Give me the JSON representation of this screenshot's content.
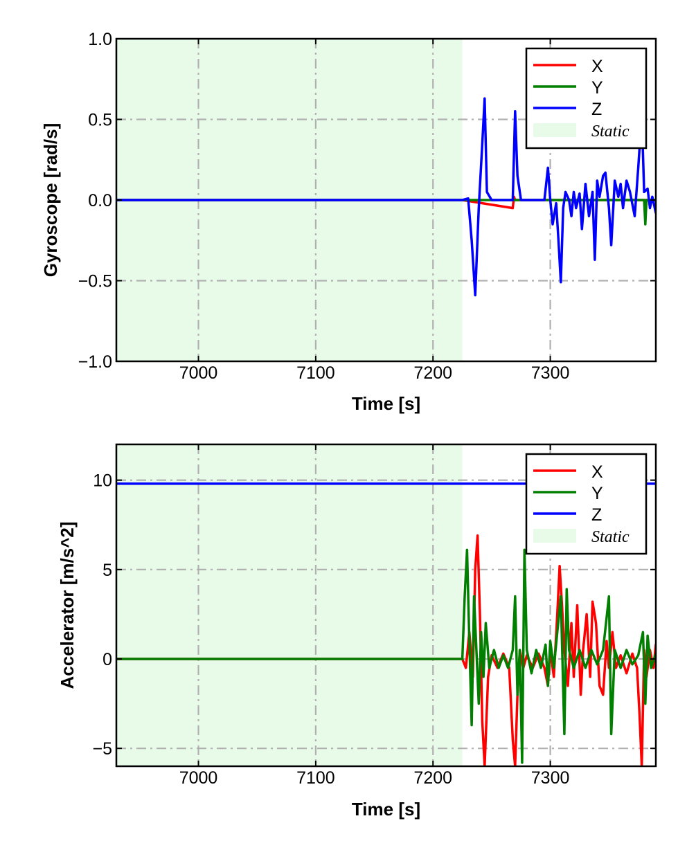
{
  "colors": {
    "x": "#ff0000",
    "y": "#007f00",
    "z": "#0000ff",
    "static": "#e8fbe8",
    "grid": "#b0b0b0"
  },
  "chart_data": [
    {
      "type": "line",
      "xlabel": "Time [s]",
      "ylabel": "Gyroscope [rad/s]",
      "xlim": [
        6930,
        7390
      ],
      "ylim": [
        -1.0,
        1.0
      ],
      "xticks": [
        7000,
        7100,
        7200,
        7300
      ],
      "xtick_labels": [
        "7000",
        "7100",
        "7200",
        "7300"
      ],
      "yticks": [
        1.0,
        0.5,
        0.0,
        -0.5,
        -1.0
      ],
      "ytick_labels": [
        "1.0",
        "0.5",
        "0.0",
        "−0.5",
        "−1.0"
      ],
      "grid": true,
      "legend_position": "top-right",
      "static_region": [
        6930,
        7225
      ],
      "legend": [
        "X",
        "Y",
        "Z",
        "Static"
      ],
      "series": [
        {
          "name": "X",
          "color": "#ff0000",
          "x": [
            6930,
            7225,
            7268,
            7269,
            7270,
            7300,
            7390
          ],
          "y": [
            0,
            0,
            -0.05,
            0.02,
            0,
            0,
            0
          ]
        },
        {
          "name": "Y",
          "color": "#007f00",
          "x": [
            6930,
            7225,
            7380,
            7381,
            7382,
            7390
          ],
          "y": [
            0,
            0,
            0,
            -0.15,
            0,
            0
          ]
        },
        {
          "name": "Z",
          "color": "#0000ff",
          "x": [
            6930,
            7225,
            7230,
            7233,
            7236,
            7239,
            7242,
            7244,
            7246,
            7250,
            7268,
            7270,
            7272,
            7275,
            7278,
            7295,
            7298,
            7300,
            7302,
            7305,
            7307,
            7309,
            7311,
            7313,
            7316,
            7318,
            7320,
            7322,
            7325,
            7327,
            7330,
            7333,
            7336,
            7338,
            7340,
            7342,
            7345,
            7347,
            7350,
            7352,
            7355,
            7358,
            7360,
            7362,
            7365,
            7368,
            7372,
            7375,
            7378,
            7380,
            7383,
            7385,
            7387,
            7390
          ],
          "y": [
            0,
            0,
            0.01,
            -0.25,
            -0.59,
            -0.05,
            0.35,
            0.63,
            0.05,
            0,
            0,
            0.55,
            0.15,
            0,
            0,
            0,
            0.2,
            0,
            -0.15,
            -0.02,
            -0.25,
            -0.51,
            -0.05,
            0.05,
            0,
            -0.1,
            0.05,
            -0.05,
            0.04,
            -0.18,
            0.1,
            -0.1,
            0.05,
            -0.37,
            0.12,
            0.02,
            0.15,
            0.17,
            -0.05,
            -0.28,
            0.12,
            0.02,
            0.1,
            -0.05,
            0.12,
            0.05,
            -0.1,
            0.2,
            0.53,
            0.05,
            0.07,
            -0.05,
            0.02,
            -0.08
          ]
        }
      ]
    },
    {
      "type": "line",
      "xlabel": "Time [s]",
      "ylabel": "Accelerator [m/s^2]",
      "xlim": [
        6930,
        7390
      ],
      "ylim": [
        -6,
        12
      ],
      "xticks": [
        7000,
        7100,
        7200,
        7300
      ],
      "xtick_labels": [
        "7000",
        "7100",
        "7200",
        "7300"
      ],
      "yticks": [
        10,
        5,
        0,
        -5
      ],
      "ytick_labels": [
        "10",
        "5",
        "0",
        "−5"
      ],
      "grid": true,
      "legend_position": "top-right",
      "static_region": [
        6930,
        7225
      ],
      "legend": [
        "X",
        "Y",
        "Z",
        "Static"
      ],
      "series": [
        {
          "name": "X",
          "color": "#ff0000",
          "x": [
            6930,
            7225,
            7228,
            7231,
            7234,
            7236,
            7238,
            7240,
            7242,
            7244,
            7247,
            7250,
            7255,
            7260,
            7265,
            7268,
            7270,
            7272,
            7274,
            7277,
            7280,
            7285,
            7290,
            7295,
            7298,
            7300,
            7303,
            7306,
            7308,
            7310,
            7312,
            7315,
            7318,
            7320,
            7323,
            7326,
            7328,
            7331,
            7334,
            7336,
            7339,
            7342,
            7345,
            7348,
            7350,
            7353,
            7356,
            7360,
            7365,
            7370,
            7374,
            7376,
            7378,
            7380,
            7382,
            7385,
            7388,
            7390
          ],
          "y": [
            0,
            0,
            -0.5,
            1.5,
            -1,
            5,
            6.9,
            2.5,
            -3.5,
            -6,
            -1,
            0.2,
            -0.5,
            0.3,
            -0.5,
            -4.5,
            -6,
            -2,
            0.5,
            -0.5,
            0.2,
            -0.5,
            0.3,
            -0.5,
            -1.5,
            0.5,
            -1,
            2.5,
            5.2,
            3,
            0.5,
            -1.5,
            2,
            -1,
            3,
            -2,
            0.5,
            2.5,
            -1,
            3.2,
            2,
            -1.5,
            -2,
            1,
            -0.5,
            1.5,
            -0.5,
            0.2,
            -0.8,
            0.3,
            -0.5,
            -3,
            -6,
            0.5,
            -1,
            0.5,
            -0.5,
            0.8
          ]
        },
        {
          "name": "Y",
          "color": "#007f00",
          "x": [
            6930,
            7225,
            7227,
            7229,
            7231,
            7233,
            7235,
            7237,
            7239,
            7241,
            7243,
            7245,
            7248,
            7252,
            7256,
            7260,
            7264,
            7268,
            7270,
            7272,
            7274,
            7276,
            7278,
            7280,
            7284,
            7288,
            7292,
            7296,
            7298,
            7300,
            7303,
            7306,
            7309,
            7312,
            7314,
            7316,
            7320,
            7325,
            7330,
            7335,
            7340,
            7345,
            7350,
            7352,
            7355,
            7360,
            7365,
            7370,
            7375,
            7379,
            7381,
            7383,
            7386,
            7390
          ],
          "y": [
            0,
            0,
            3.5,
            6.1,
            1,
            -3.7,
            3.5,
            0.5,
            -2.5,
            1.5,
            -1,
            2,
            -0.5,
            0.5,
            -0.5,
            0.2,
            -0.5,
            0.5,
            3.5,
            -2,
            0.5,
            -5.8,
            6.1,
            0.5,
            -0.8,
            0.5,
            -0.5,
            0.8,
            -1.5,
            1,
            -0.5,
            1.5,
            3.5,
            -4.2,
            3.9,
            0.5,
            -0.5,
            0.5,
            -0.5,
            0.5,
            -0.3,
            0.5,
            3.5,
            -4.2,
            0.5,
            -0.5,
            0.5,
            -0.3,
            0.2,
            1.5,
            -2.5,
            1.3,
            -0.5,
            0.3
          ]
        },
        {
          "name": "Z",
          "color": "#0000ff",
          "x": [
            6930,
            7390
          ],
          "y": [
            9.8,
            9.8
          ]
        }
      ]
    }
  ]
}
